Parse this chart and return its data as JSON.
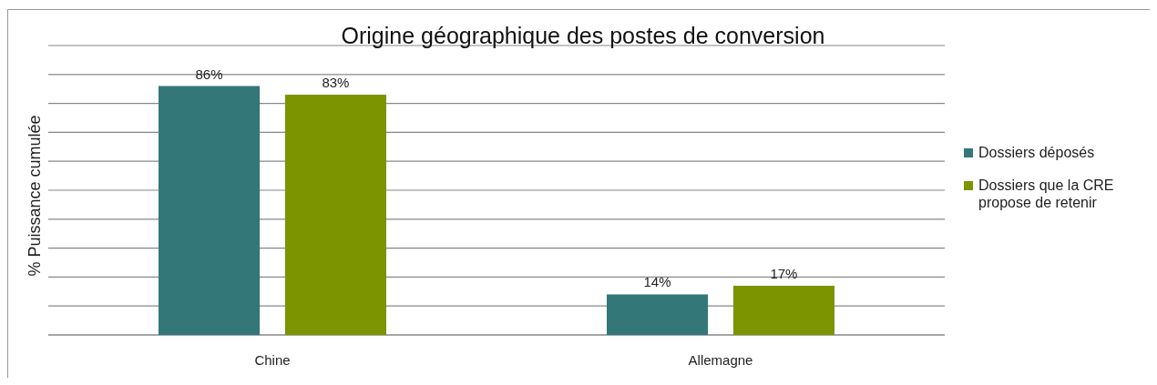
{
  "chart_data": {
    "type": "bar",
    "title": "Origine géographique des postes de conversion",
    "ylabel": "% Puissance cumulée",
    "categories": [
      "Chine",
      "Allemagne"
    ],
    "series": [
      {
        "name": "Dossiers déposés",
        "color": "#337779",
        "values": [
          86,
          14
        ],
        "value_labels": [
          "86%",
          "14%"
        ]
      },
      {
        "name": "Dossiers que la CRE propose de retenir",
        "color": "#7b9400",
        "values": [
          83,
          17
        ],
        "value_labels": [
          "83%",
          "17%"
        ]
      }
    ],
    "ylim": [
      0,
      100
    ],
    "yticks": [
      {
        "value": 0,
        "label": null
      },
      {
        "value": 10,
        "label": null
      },
      {
        "value": 20,
        "label": null
      },
      {
        "value": 30,
        "label": null
      },
      {
        "value": 40,
        "label": null
      },
      {
        "value": 50,
        "label": null
      },
      {
        "value": 60,
        "label": null
      },
      {
        "value": 70,
        "label": null
      },
      {
        "value": 80,
        "label": null
      },
      {
        "value": 90,
        "label": null
      },
      {
        "value": 100,
        "label": null
      }
    ],
    "tick_labels": "x",
    "grid": "y",
    "legend": "right"
  }
}
